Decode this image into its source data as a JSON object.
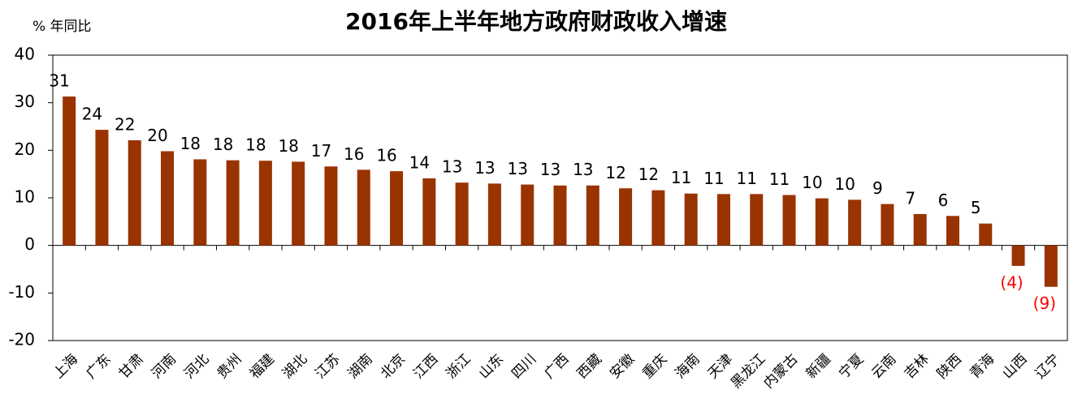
{
  "chart_data": {
    "type": "bar",
    "title": "2016年上半年地方政府财政收入增速",
    "y_label": "% 年同比",
    "categories": [
      "上海",
      "广东",
      "甘肃",
      "河南",
      "河北",
      "贵州",
      "福建",
      "湖北",
      "江苏",
      "湖南",
      "北京",
      "江西",
      "浙江",
      "山东",
      "四川",
      "广西",
      "西藏",
      "安徽",
      "重庆",
      "海南",
      "天津",
      "黑龙江",
      "内蒙古",
      "新疆",
      "宁夏",
      "云南",
      "吉林",
      "陕西",
      "青海",
      "山西",
      "辽宁"
    ],
    "values": [
      31.3,
      24.3,
      22.1,
      19.8,
      18.1,
      17.9,
      17.8,
      17.6,
      16.6,
      15.9,
      15.6,
      14.1,
      13.2,
      13.0,
      12.8,
      12.6,
      12.6,
      12.0,
      11.6,
      10.9,
      10.8,
      10.8,
      10.6,
      9.9,
      9.6,
      8.7,
      6.6,
      6.2,
      4.6,
      -4.3,
      -8.7
    ],
    "value_labels": [
      "31",
      "24",
      "22",
      "20",
      "18",
      "18",
      "18",
      "18",
      "17",
      "16",
      "16",
      "14",
      "13",
      "13",
      "13",
      "13",
      "13",
      "12",
      "12",
      "11",
      "11",
      "11",
      "11",
      "10",
      "10",
      "9",
      "7",
      "6",
      "5",
      "(4)",
      "(9)"
    ],
    "color": "#993300",
    "negative_label_color": "#ff0000",
    "ylim": [
      -20,
      40
    ],
    "yticks": [
      -20,
      -10,
      0,
      10,
      20,
      30,
      40
    ],
    "grid": false
  }
}
